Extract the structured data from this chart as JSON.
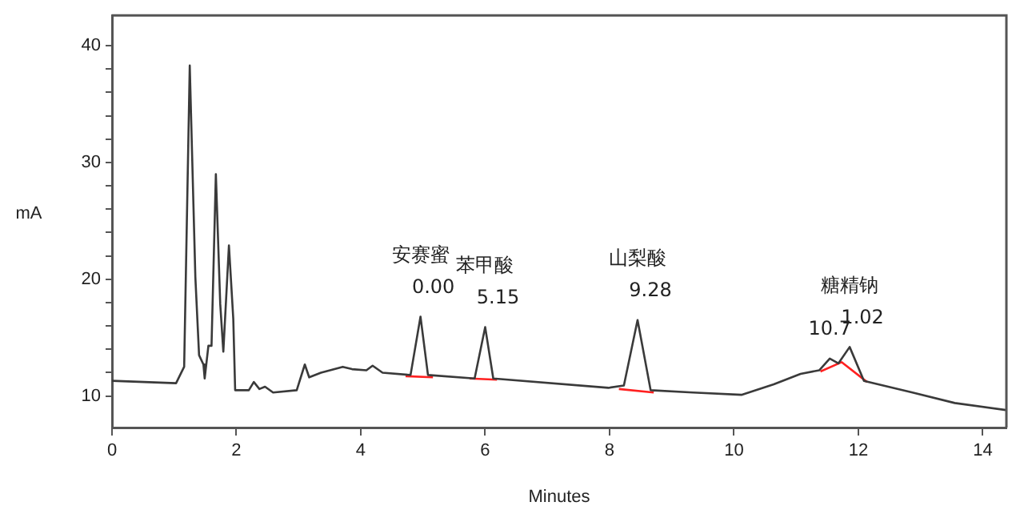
{
  "chart_data": {
    "type": "line",
    "xlabel": "Minutes",
    "ylabel": "mA",
    "xlim": [
      0,
      14.38
    ],
    "ylim": [
      7.3,
      42.6
    ],
    "xticks": [
      0,
      2,
      4,
      6,
      8,
      10,
      12,
      14
    ],
    "yticks": [
      10,
      {
        "value": 12,
        "label": null
      },
      {
        "value": 14,
        "label": null
      },
      {
        "value": 16,
        "label": null
      },
      {
        "value": 18,
        "label": null
      },
      20,
      {
        "value": 22,
        "label": null
      },
      {
        "value": 24,
        "label": null
      },
      {
        "value": 26,
        "label": null
      },
      {
        "value": 28,
        "label": null
      },
      30,
      {
        "value": 32,
        "label": null
      },
      {
        "value": 34,
        "label": null
      },
      {
        "value": 36,
        "label": null
      },
      {
        "value": 38,
        "label": null
      },
      40
    ],
    "grid": false,
    "legend": false,
    "marker": "none",
    "line_style": "solid",
    "series": [
      {
        "color": "#3a3a3a",
        "x": [
          0,
          1.03,
          1.16,
          1.25,
          1.34,
          1.4,
          1.47,
          1.49,
          1.55,
          1.6,
          1.67,
          1.74,
          1.79,
          1.88,
          1.95,
          1.98,
          2.2,
          2.28,
          2.37,
          2.46,
          2.59,
          2.97,
          3.1,
          3.17,
          3.36,
          3.71,
          3.86,
          4.09,
          4.19,
          4.35,
          4.8,
          4.96,
          5.08,
          5.83,
          6.0,
          6.13,
          7.98,
          8.23,
          8.45,
          8.66,
          9.34,
          10.12,
          10.64,
          11.07,
          11.37,
          11.54,
          11.68,
          11.86,
          12.09,
          12.87,
          13.55,
          14.37
        ],
        "values": [
          11.3,
          11.1,
          12.5,
          38.3,
          20.2,
          13.5,
          12.7,
          11.5,
          14.3,
          14.3,
          29.0,
          17.9,
          13.8,
          22.9,
          16.6,
          10.5,
          10.5,
          11.2,
          10.6,
          10.8,
          10.3,
          10.5,
          12.7,
          11.6,
          12.0,
          12.5,
          12.3,
          12.2,
          12.6,
          12.0,
          11.8,
          16.8,
          11.8,
          11.5,
          15.9,
          11.5,
          10.7,
          10.9,
          16.5,
          10.5,
          10.3,
          10.1,
          11.0,
          11.9,
          12.2,
          13.2,
          12.8,
          14.2,
          11.3,
          10.3,
          9.4,
          8.8
        ]
      },
      {
        "color": "#ff2020",
        "x": [
          4.72,
          5.16,
          5.5,
          5.75,
          6.19,
          7.2,
          8.15,
          8.71,
          10.0,
          11.39,
          11.73,
          12.14
        ],
        "values": [
          11.7,
          11.6,
          null,
          11.5,
          11.4,
          null,
          10.6,
          10.3,
          null,
          12.1,
          12.9,
          11.2
        ]
      }
    ],
    "annotations": [
      {
        "text": "安赛蜜",
        "x": 4.96,
        "y": 16.8
      },
      {
        "text": "0.00",
        "x": 4.96,
        "y": 16.8
      },
      {
        "text": "苯甲酸",
        "x": 6.0,
        "y": 15.9
      },
      {
        "text": "5.15",
        "x": 6.0,
        "y": 15.9
      },
      {
        "text": "山梨酸",
        "x": 8.45,
        "y": 16.5
      },
      {
        "text": "9.28",
        "x": 8.45,
        "y": 16.5
      },
      {
        "text": "糖精钠",
        "x": 11.86,
        "y": 14.2
      },
      {
        "text": "1.02",
        "x": 11.86,
        "y": 14.2
      },
      {
        "text": "10.7",
        "x": 11.54,
        "y": 13.2
      }
    ]
  }
}
